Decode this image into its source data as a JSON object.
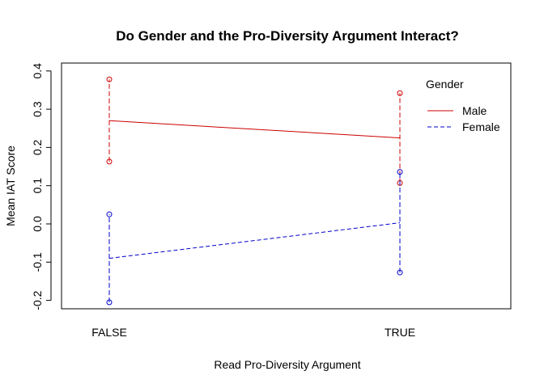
{
  "chart_data": {
    "type": "line",
    "title": "Do Gender and the Pro-Diversity Argument Interact?",
    "xlabel": "Read Pro-Diversity Argument",
    "ylabel": "Mean IAT Score",
    "categories": [
      "FALSE",
      "TRUE"
    ],
    "yticks": [
      "-0.2",
      "-0.1",
      "0.0",
      "0.1",
      "0.2",
      "0.3",
      "0.4"
    ],
    "ylim": [
      -0.22,
      0.42
    ],
    "legend": {
      "title": "Gender",
      "position": "top-right"
    },
    "series": [
      {
        "name": "Male",
        "color": "#cc0000",
        "line_style": "solid",
        "means": [
          0.27,
          0.225
        ],
        "upper": [
          0.378,
          0.342
        ],
        "lower": [
          0.163,
          0.107
        ]
      },
      {
        "name": "Female",
        "color": "#0000cc",
        "line_style": "dashed",
        "means": [
          -0.09,
          0.003
        ],
        "upper": [
          0.025,
          0.136
        ],
        "lower": [
          -0.205,
          -0.127
        ]
      }
    ]
  }
}
